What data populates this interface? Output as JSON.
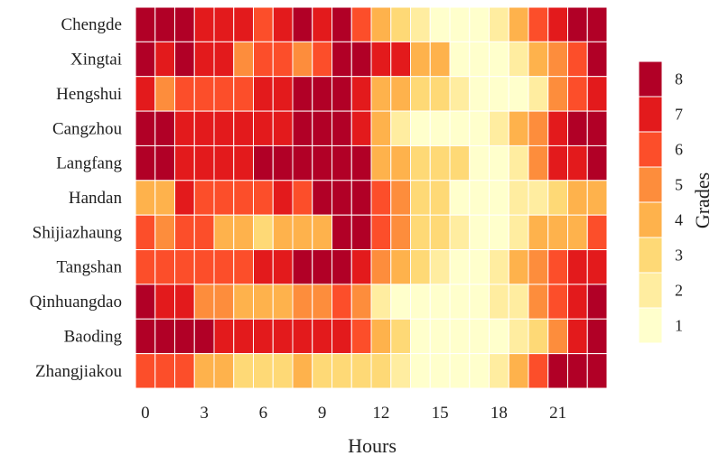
{
  "chart_data": {
    "type": "heatmap",
    "title": "",
    "xlabel": "Hours",
    "ylabel": "",
    "colorbar_label": "Grades",
    "rows": [
      "Chengde",
      "Xingtai",
      "Hengshui",
      "Cangzhou",
      "Langfang",
      "Handan",
      "Shijiazhaung",
      "Tangshan",
      "Qinhuangdao",
      "Baoding",
      "Zhangjiakou"
    ],
    "x": [
      0,
      1,
      2,
      3,
      4,
      5,
      6,
      7,
      8,
      9,
      10,
      11,
      12,
      13,
      14,
      15,
      16,
      17,
      18,
      19,
      20,
      21,
      22,
      23
    ],
    "x_ticks": [
      "0",
      "3",
      "6",
      "9",
      "12",
      "15",
      "18",
      "21"
    ],
    "x_tick_values": [
      0,
      3,
      6,
      9,
      12,
      15,
      18,
      21
    ],
    "colorbar_ticks": [
      "1",
      "2",
      "3",
      "4",
      "5",
      "6",
      "7",
      "8"
    ],
    "colorbar_range": [
      1,
      8
    ],
    "grid": true,
    "legend_position": "right",
    "values": [
      [
        8,
        8,
        8,
        7,
        7,
        7,
        6,
        7,
        8,
        7,
        8,
        6,
        4,
        3,
        2,
        1,
        1,
        1,
        2,
        4,
        6,
        7,
        8,
        8
      ],
      [
        8,
        7,
        8,
        7,
        7,
        5,
        6,
        6,
        5,
        6,
        8,
        8,
        7,
        7,
        4,
        4,
        1,
        1,
        1,
        2,
        4,
        5,
        6,
        8
      ],
      [
        7,
        5,
        6,
        6,
        6,
        6,
        7,
        7,
        8,
        8,
        8,
        7,
        4,
        4,
        3,
        3,
        2,
        1,
        1,
        1,
        2,
        5,
        6,
        7
      ],
      [
        8,
        8,
        7,
        7,
        7,
        7,
        7,
        7,
        8,
        8,
        8,
        7,
        4,
        2,
        1,
        1,
        1,
        1,
        2,
        4,
        5,
        7,
        8,
        8
      ],
      [
        8,
        8,
        7,
        7,
        7,
        7,
        8,
        8,
        8,
        8,
        8,
        8,
        4,
        4,
        3,
        3,
        3,
        1,
        1,
        2,
        5,
        7,
        7,
        8
      ],
      [
        4,
        4,
        7,
        6,
        6,
        6,
        6,
        7,
        6,
        8,
        8,
        8,
        6,
        5,
        3,
        3,
        1,
        1,
        1,
        2,
        2,
        3,
        4,
        4
      ],
      [
        6,
        5,
        6,
        6,
        4,
        4,
        3,
        4,
        4,
        4,
        8,
        8,
        6,
        5,
        3,
        3,
        2,
        1,
        1,
        2,
        4,
        4,
        4,
        6
      ],
      [
        6,
        6,
        6,
        6,
        6,
        6,
        7,
        7,
        8,
        8,
        8,
        7,
        5,
        4,
        3,
        2,
        1,
        1,
        2,
        4,
        5,
        6,
        7,
        7
      ],
      [
        8,
        7,
        7,
        5,
        5,
        4,
        4,
        4,
        5,
        5,
        6,
        5,
        2,
        1,
        1,
        1,
        1,
        1,
        2,
        2,
        5,
        6,
        7,
        8
      ],
      [
        8,
        8,
        8,
        8,
        7,
        7,
        7,
        7,
        7,
        7,
        7,
        6,
        4,
        3,
        1,
        1,
        1,
        1,
        1,
        2,
        3,
        5,
        7,
        8
      ],
      [
        6,
        6,
        6,
        4,
        4,
        3,
        3,
        3,
        4,
        3,
        3,
        3,
        3,
        2,
        1,
        1,
        1,
        1,
        2,
        4,
        6,
        8,
        8,
        8
      ]
    ],
    "colors": {
      "1": "#ffffcc",
      "2": "#ffeda0",
      "3": "#fed976",
      "4": "#feb24c",
      "5": "#fd8d3c",
      "6": "#fc4e2a",
      "7": "#e31a1c",
      "8": "#b10026"
    },
    "grid_color": "#ffffff"
  }
}
